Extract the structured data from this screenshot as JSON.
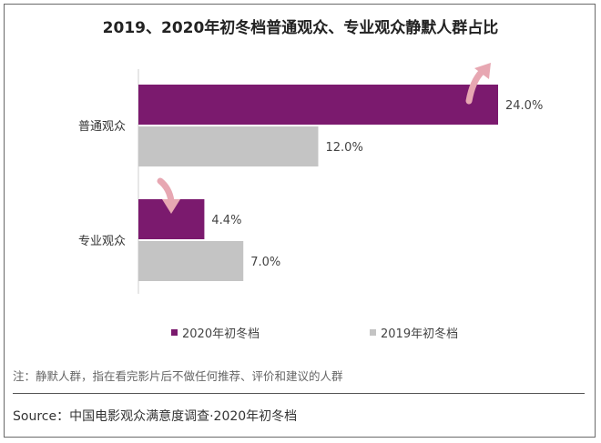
{
  "title": "2019、2020年初冬档普通观众、专业观众静默人群占比",
  "chart_data": {
    "type": "bar",
    "orientation": "horizontal",
    "categories": [
      "普通观众",
      "专业观众"
    ],
    "series": [
      {
        "name": "2020年初冬档",
        "values": [
          24.0,
          4.4
        ],
        "labels": [
          "24.0%",
          "4.4%"
        ],
        "color": "#7b1a6e"
      },
      {
        "name": "2019年初冬档",
        "values": [
          12.0,
          7.0
        ],
        "labels": [
          "12.0%",
          "7.0%"
        ],
        "color": "#c4c4c4"
      }
    ],
    "xlim": [
      0,
      28
    ],
    "annotations": [
      {
        "category": "普通观众",
        "direction": "up",
        "color": "#e7a7b2"
      },
      {
        "category": "专业观众",
        "direction": "down",
        "color": "#e7a7b2"
      }
    ],
    "legend_position": "bottom"
  },
  "note": "注：静默人群，指在看完影片后不做任何推荐、评价和建议的人群",
  "source": "Source：中国电影观众满意度调查·2020年初冬档"
}
